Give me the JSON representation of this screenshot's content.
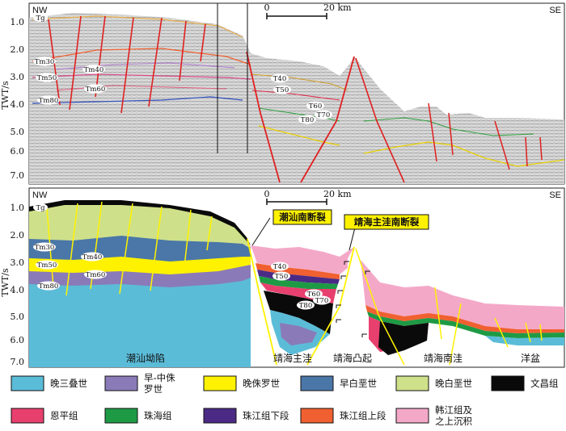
{
  "sections": {
    "top": {
      "left_label": "NW",
      "right_label": "SE",
      "y_axis_label": "TWT/s",
      "y_ticks": [
        "1.0",
        "2.0",
        "3.0",
        "4.0",
        "5.0",
        "6.0",
        "7.0"
      ],
      "scale_zero": "0",
      "scale_end": "20 km",
      "horizon_labels": {
        "tg": "Tg",
        "tm30": "Tm30",
        "tm40": "Tm40",
        "tm50": "Tm50",
        "tm60": "Tm60",
        "tm80": "Tm80",
        "t40": "T40",
        "t50": "T50",
        "t60": "T60",
        "t70": "T70",
        "t80": "T80"
      }
    },
    "bottom": {
      "left_label": "NW",
      "right_label": "SE",
      "y_axis_label": "TWT/s",
      "y_ticks": [
        "1.0",
        "2.0",
        "3.0",
        "4.0",
        "5.0",
        "6.0",
        "7.0"
      ],
      "scale_zero": "0",
      "scale_end": "20 km",
      "horizon_labels": {
        "tg": "Tg",
        "tm30": "Tm30",
        "tm40": "Tm40",
        "tm50": "Tm50",
        "tm60": "Tm60",
        "tm80": "Tm80",
        "t40": "T40",
        "t50": "T50",
        "t60": "T60",
        "t70": "T70",
        "t80": "T80"
      },
      "fault_callouts": {
        "chaoshan": "潮汕南断裂",
        "jinghai": "靖海主洼南断裂"
      },
      "regions": {
        "chaoshan_depression": "潮汕坳陷",
        "jinghai_main_sag": "靖海主洼",
        "jinghai_uplift": "靖海凸起",
        "jinghai_south_sag": "靖海南洼",
        "ocean_basin": "洋盆"
      }
    }
  },
  "legend": [
    {
      "label": "晚三叠世",
      "color": "#5bbcd8"
    },
    {
      "label": "早-中侏罗世",
      "color": "#8a7bb8"
    },
    {
      "label": "晚侏罗世",
      "color": "#fff200"
    },
    {
      "label": "早白垩世",
      "color": "#4a77a8"
    },
    {
      "label": "晚白垩世",
      "color": "#cfe08a"
    },
    {
      "label": "文昌组",
      "color": "#0a0a0a"
    },
    {
      "label": "恩平组",
      "color": "#e8406e"
    },
    {
      "label": "珠海组",
      "color": "#1e9a45"
    },
    {
      "label": "珠江组下段",
      "color": "#4b2a86"
    },
    {
      "label": "珠江组上段",
      "color": "#f06030"
    },
    {
      "label": "韩江组及之上沉积",
      "color": "#f4a8c8"
    }
  ]
}
